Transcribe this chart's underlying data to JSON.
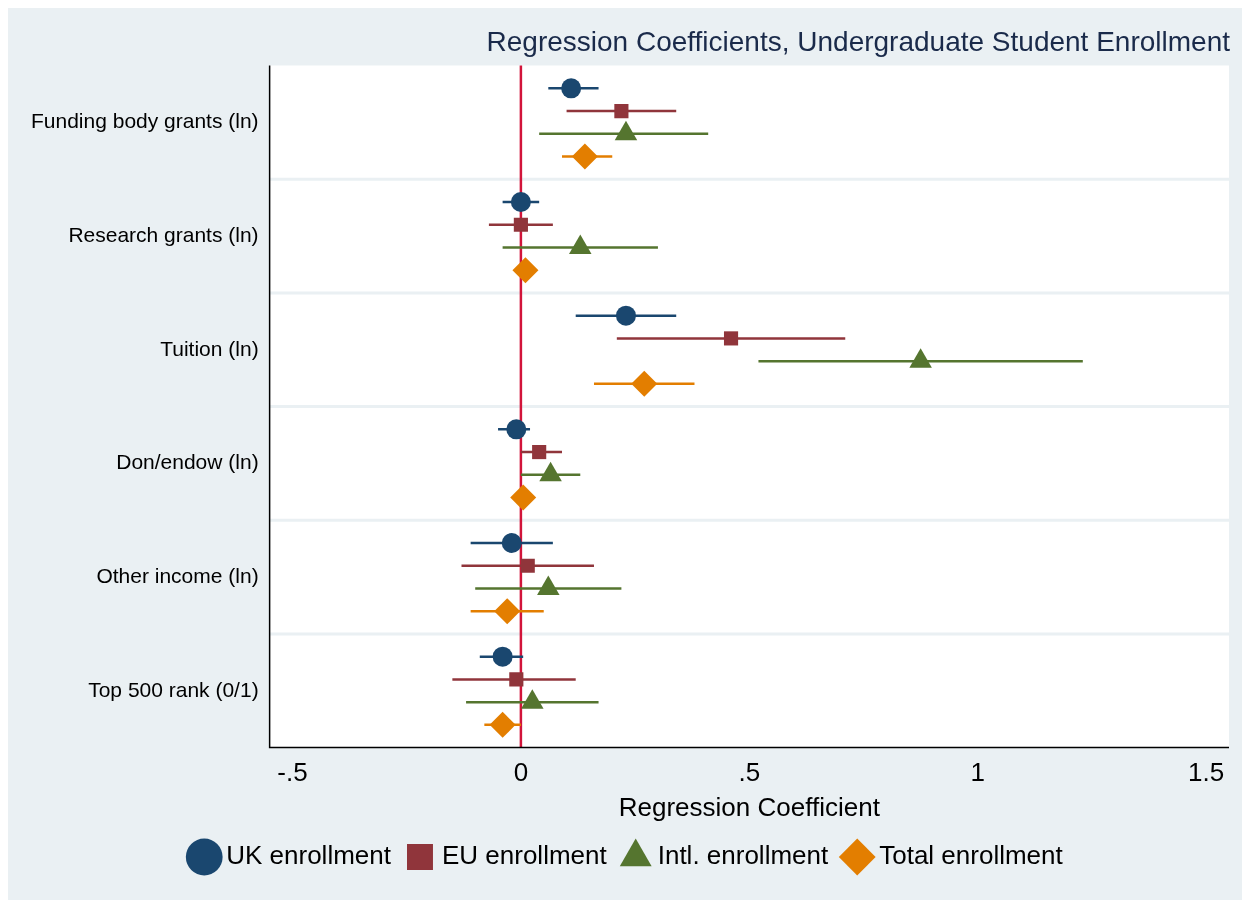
{
  "chart_data": {
    "type": "scatter",
    "orientation": "horizontal",
    "title": "Regression Coefficients, Undergraduate Student Enrollment",
    "xlabel": "Regression Coefficient",
    "categories": [
      "Funding body grants (ln)",
      "Research grants (ln)",
      "Tuition (ln)",
      "Don/endow (ln)",
      "Other income (ln)",
      "Top 500 rank (0/1)"
    ],
    "xlim": [
      -0.55,
      1.55
    ],
    "xticks": [
      {
        "value": -0.5,
        "label": "-.5"
      },
      0,
      {
        "value": 0.5,
        "label": ".5"
      },
      1,
      1.5
    ],
    "grid": "y",
    "legend": "bottom",
    "ref_lines": [
      {
        "axis": "x",
        "value": 0,
        "color": "#d2143a"
      }
    ],
    "series": [
      {
        "name": "UK enrollment",
        "color": "#1a476f",
        "marker": "circle",
        "values": [
          0.11,
          0,
          0.23,
          -0.01,
          -0.02,
          -0.04
        ],
        "errors": [
          [
            0.06,
            0.17
          ],
          [
            -0.04,
            0.04
          ],
          [
            0.12,
            0.34
          ],
          [
            -0.05,
            0.02
          ],
          [
            -0.11,
            0.07
          ],
          [
            -0.09,
            0.005
          ]
        ]
      },
      {
        "name": "EU enrollment",
        "color": "#90353b",
        "marker": "square",
        "values": [
          0.22,
          0,
          0.46,
          0.04,
          0.015,
          -0.01
        ],
        "errors": [
          [
            0.1,
            0.34
          ],
          [
            -0.07,
            0.07
          ],
          [
            0.21,
            0.71
          ],
          [
            0,
            0.09
          ],
          [
            -0.13,
            0.16
          ],
          [
            -0.15,
            0.12
          ]
        ]
      },
      {
        "name": "Intl. enrollment",
        "color": "#55752f",
        "marker": "triangle",
        "values": [
          0.23,
          0.13,
          0.875,
          0.065,
          0.06,
          0.025
        ],
        "errors": [
          [
            0.04,
            0.41
          ],
          [
            -0.04,
            0.3
          ],
          [
            0.52,
            1.23
          ],
          [
            0,
            0.13
          ],
          [
            -0.1,
            0.22
          ],
          [
            -0.12,
            0.17
          ]
        ]
      },
      {
        "name": "Total enrollment",
        "color": "#e37e00",
        "marker": "diamond",
        "values": [
          0.14,
          0.01,
          0.27,
          0.005,
          -0.03,
          -0.04
        ],
        "errors": [
          [
            0.09,
            0.2
          ],
          null,
          [
            0.16,
            0.38
          ],
          null,
          [
            -0.11,
            0.05
          ],
          [
            -0.08,
            0
          ]
        ]
      }
    ]
  }
}
